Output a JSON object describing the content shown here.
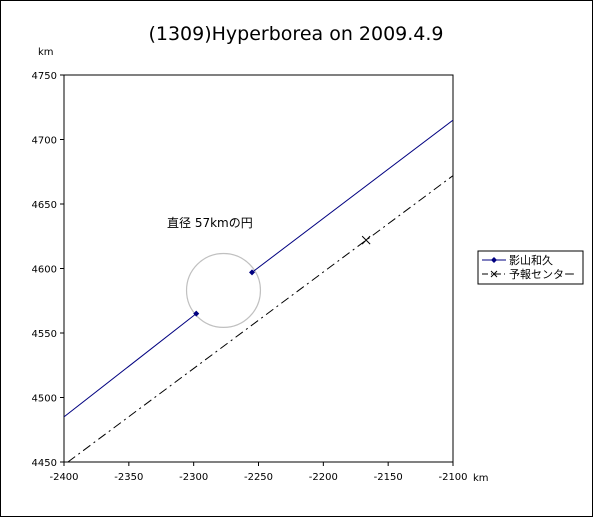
{
  "chart_data": {
    "type": "line",
    "title": "(1309)Hyperborea on 2009.4.9",
    "x_unit": "km",
    "y_unit": "km",
    "xlim": [
      -2400,
      -2100
    ],
    "ylim": [
      4450,
      4750
    ],
    "x_ticks": [
      -2400,
      -2350,
      -2300,
      -2250,
      -2200,
      -2150,
      -2100
    ],
    "y_ticks": [
      4450,
      4500,
      4550,
      4600,
      4650,
      4700,
      4750
    ],
    "x_tick_labels": [
      "-2400",
      "-2350",
      "-2300",
      "-2250",
      "-2200",
      "-2150",
      "-2100"
    ],
    "y_tick_labels": [
      "4450",
      "4500",
      "4550",
      "4600",
      "4650",
      "4700",
      "4750"
    ],
    "grid": false,
    "legend_position": "right",
    "series": [
      {
        "name": "影山和久",
        "style": "solid",
        "marker": "diamond",
        "color": "#000080",
        "lines": [
          [
            [
              -2400,
              4485
            ],
            [
              -2298,
              4565
            ]
          ],
          [
            [
              -2255,
              4597
            ],
            [
              -2100,
              4715
            ]
          ]
        ],
        "points": [
          [
            -2298,
            4565
          ],
          [
            -2255,
            4597
          ]
        ]
      },
      {
        "name": "予報センター",
        "style": "dashdot",
        "marker": "x",
        "color": "#000000",
        "lines": [
          [
            [
              -2397,
              4450
            ],
            [
              -2100,
              4672
            ]
          ]
        ],
        "points": [
          [
            -2167,
            4622
          ]
        ]
      }
    ],
    "circle": {
      "center": [
        -2277,
        4583
      ],
      "diameter_km": 57,
      "color": "#c0c0c0"
    },
    "annotation": {
      "text": "直径 57kmの円",
      "anchor": [
        -2325,
        4634
      ]
    }
  }
}
